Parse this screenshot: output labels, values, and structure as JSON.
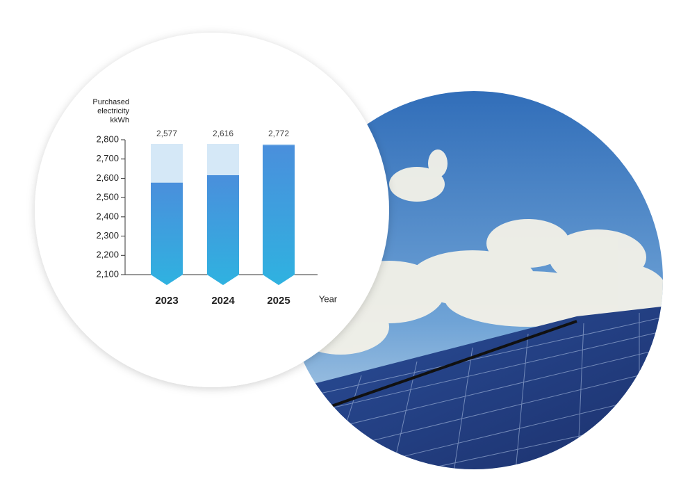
{
  "chart_data": {
    "type": "bar",
    "y_label": "Purchased electricity kkWh",
    "x_label": "Year",
    "categories": [
      "2023",
      "2024",
      "2025"
    ],
    "values": [
      2577,
      2616,
      2772
    ],
    "value_labels": [
      "2,577",
      "2,616",
      "2,772"
    ],
    "color": "#3a8ddb",
    "ylim": [
      2100,
      2800
    ],
    "yticks": [
      {
        "value": 2100,
        "label": "2,100"
      },
      {
        "value": 2200,
        "label": "2,200"
      },
      {
        "value": 2300,
        "label": "2,300"
      },
      {
        "value": 2400,
        "label": "2,400"
      },
      {
        "value": 2500,
        "label": "2,500"
      },
      {
        "value": 2600,
        "label": "2,600"
      },
      {
        "value": 2700,
        "label": "2,700"
      },
      {
        "value": 2800,
        "label": "2,800"
      }
    ]
  }
}
